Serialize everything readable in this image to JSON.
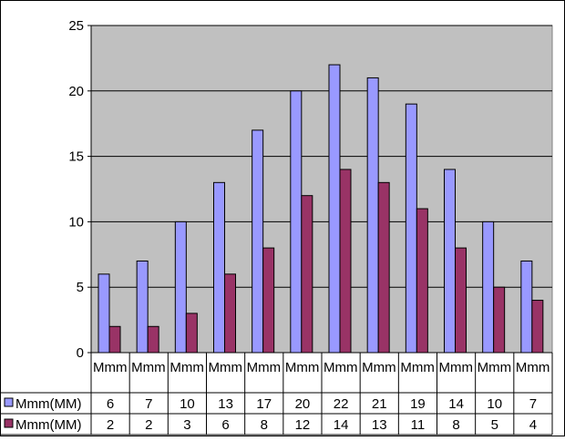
{
  "chart_data": {
    "type": "bar",
    "categories": [
      "Mmm",
      "Mmm",
      "Mmm",
      "Mmm",
      "Mmm",
      "Mmm",
      "Mmm",
      "Mmm",
      "Mmm",
      "Mmm",
      "Mmm",
      "Mmm"
    ],
    "series": [
      {
        "name": "Mmm(MM)",
        "values": [
          6,
          7,
          10,
          13,
          17,
          20,
          22,
          21,
          19,
          14,
          10,
          7
        ],
        "color": "#9999ff"
      },
      {
        "name": "Mmm(MM)",
        "values": [
          2,
          2,
          3,
          6,
          8,
          12,
          14,
          13,
          11,
          8,
          5,
          4
        ],
        "color": "#993366"
      }
    ],
    "y_ticks": [
      "0",
      "5",
      "10",
      "15",
      "20",
      "25"
    ],
    "ylim": [
      0,
      25
    ],
    "grid": true,
    "plot_background": "#c0c0c0",
    "legend": "data-table-left"
  }
}
